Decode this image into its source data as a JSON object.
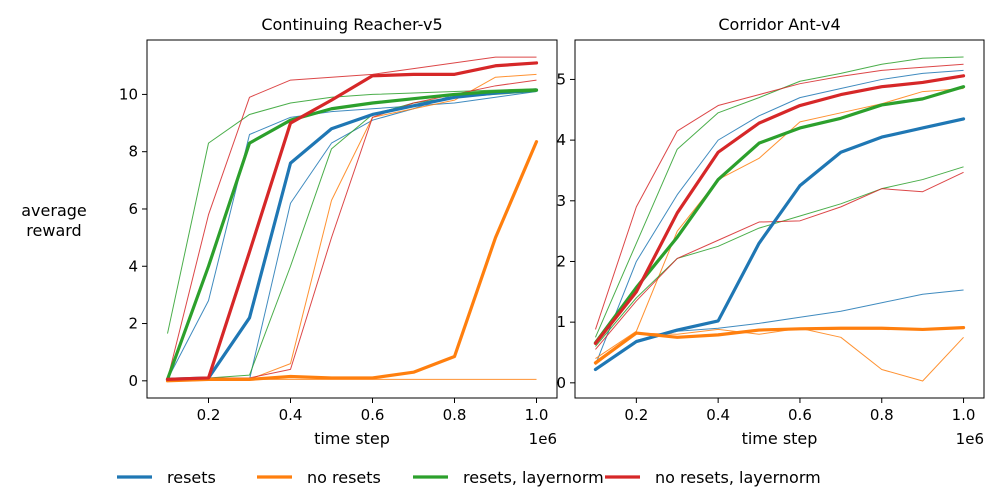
{
  "figure": {
    "ylabel": [
      "average",
      "reward"
    ],
    "legend": [
      {
        "label": "resets",
        "color": "#1f77b4"
      },
      {
        "label": "no resets",
        "color": "#ff7f0e"
      },
      {
        "label": "resets, layernorm",
        "color": "#2ca02c"
      },
      {
        "label": "no resets, layernorm",
        "color": "#d62728"
      }
    ],
    "legend_position": "bottom-center"
  },
  "chart_data": [
    {
      "type": "line",
      "title": "Continuing Reacher-v5",
      "xlabel": "time step",
      "ylabel": "average reward",
      "x_offset_label": "1e6",
      "x": [
        0.1,
        0.2,
        0.3,
        0.4,
        0.5,
        0.6,
        0.7,
        0.8,
        0.9,
        1.0
      ],
      "xlim": [
        0.05,
        1.05
      ],
      "ylim": [
        -0.6,
        11.9
      ],
      "xticks": [
        0.2,
        0.4,
        0.6,
        0.8,
        1.0
      ],
      "xtick_labels": [
        "0.2",
        "0.4",
        "0.6",
        "0.8",
        "1.0"
      ],
      "yticks": [
        0,
        2,
        4,
        6,
        8,
        10
      ],
      "ytick_labels": [
        "0",
        "2",
        "4",
        "6",
        "8",
        "10"
      ],
      "grid": false,
      "series": [
        {
          "name": "resets",
          "color": "#1f77b4",
          "values": [
            0.05,
            0.1,
            2.2,
            7.6,
            8.8,
            9.3,
            9.6,
            9.9,
            10.05,
            10.15
          ]
        },
        {
          "name": "no resets",
          "color": "#ff7f0e",
          "values": [
            0.0,
            0.05,
            0.05,
            0.15,
            0.1,
            0.1,
            0.3,
            0.85,
            5.0,
            8.35
          ]
        },
        {
          "name": "resets, layernorm",
          "color": "#2ca02c",
          "values": [
            0.05,
            4.0,
            8.3,
            9.1,
            9.5,
            9.7,
            9.85,
            10.0,
            10.1,
            10.15
          ]
        },
        {
          "name": "no resets, layernorm",
          "color": "#d62728",
          "values": [
            0.05,
            0.1,
            4.5,
            9.0,
            9.8,
            10.65,
            10.7,
            10.7,
            11.0,
            11.1
          ]
        }
      ],
      "runs": [
        {
          "color": "#1f77b4",
          "values": [
            0.05,
            2.8,
            8.6,
            9.2,
            9.4,
            9.5,
            9.6,
            9.7,
            9.9,
            10.1
          ]
        },
        {
          "color": "#1f77b4",
          "values": [
            0.05,
            0.05,
            0.05,
            6.2,
            8.3,
            9.1,
            9.5,
            10.0,
            10.1,
            10.2
          ]
        },
        {
          "color": "#ff7f0e",
          "values": [
            0.0,
            0.05,
            0.05,
            0.6,
            6.3,
            9.2,
            9.5,
            9.8,
            10.6,
            10.7
          ]
        },
        {
          "color": "#ff7f0e",
          "values": [
            0.0,
            0.05,
            0.05,
            0.05,
            0.05,
            0.05,
            0.05,
            0.05,
            0.05,
            0.05
          ]
        },
        {
          "color": "#2ca02c",
          "values": [
            1.65,
            8.3,
            9.3,
            9.7,
            9.9,
            10.0,
            10.05,
            10.1,
            10.15,
            10.2
          ]
        },
        {
          "color": "#2ca02c",
          "values": [
            0.05,
            0.1,
            0.2,
            4.0,
            8.1,
            9.3,
            9.7,
            9.9,
            10.0,
            10.1
          ]
        },
        {
          "color": "#d62728",
          "values": [
            0.05,
            5.8,
            9.9,
            10.5,
            10.6,
            10.7,
            10.9,
            11.1,
            11.3,
            11.3
          ]
        },
        {
          "color": "#d62728",
          "values": [
            0.05,
            0.1,
            0.1,
            0.4,
            5.0,
            9.2,
            9.7,
            10.0,
            10.3,
            10.5
          ]
        }
      ]
    },
    {
      "type": "line",
      "title": "Corridor Ant-v4",
      "xlabel": "time step",
      "x_offset_label": "1e6",
      "x": [
        0.1,
        0.2,
        0.3,
        0.4,
        0.5,
        0.6,
        0.7,
        0.8,
        0.9,
        1.0
      ],
      "xlim": [
        0.05,
        1.05
      ],
      "ylim": [
        -0.25,
        5.65
      ],
      "xticks": [
        0.2,
        0.4,
        0.6,
        0.8,
        1.0
      ],
      "xtick_labels": [
        "0.2",
        "0.4",
        "0.6",
        "0.8",
        "1.0"
      ],
      "yticks": [
        0,
        1,
        2,
        3,
        4,
        5
      ],
      "ytick_labels": [
        "0",
        "1",
        "2",
        "3",
        "4",
        "5"
      ],
      "grid": false,
      "series": [
        {
          "name": "resets",
          "color": "#1f77b4",
          "values": [
            0.22,
            0.68,
            0.87,
            1.02,
            2.3,
            3.25,
            3.8,
            4.05,
            4.2,
            4.35
          ]
        },
        {
          "name": "no resets",
          "color": "#ff7f0e",
          "values": [
            0.33,
            0.82,
            0.75,
            0.79,
            0.87,
            0.89,
            0.9,
            0.9,
            0.88,
            0.91
          ]
        },
        {
          "name": "resets, layernorm",
          "color": "#2ca02c",
          "values": [
            0.66,
            1.57,
            2.4,
            3.35,
            3.95,
            4.2,
            4.36,
            4.58,
            4.68,
            4.88
          ]
        },
        {
          "name": "no resets, layernorm",
          "color": "#d62728",
          "values": [
            0.65,
            1.5,
            2.8,
            3.8,
            4.28,
            4.57,
            4.75,
            4.88,
            4.95,
            5.06
          ]
        }
      ],
      "runs": [
        {
          "color": "#1f77b4",
          "values": [
            0.3,
            2.0,
            3.1,
            4.0,
            4.4,
            4.7,
            4.85,
            5.0,
            5.1,
            5.15
          ]
        },
        {
          "color": "#1f77b4",
          "values": [
            0.2,
            0.7,
            0.85,
            0.9,
            0.98,
            1.08,
            1.18,
            1.32,
            1.46,
            1.53
          ]
        },
        {
          "color": "#ff7f0e",
          "values": [
            0.4,
            0.85,
            2.5,
            3.35,
            3.7,
            4.3,
            4.45,
            4.6,
            4.8,
            4.85
          ]
        },
        {
          "color": "#ff7f0e",
          "values": [
            0.3,
            0.82,
            0.8,
            0.88,
            0.8,
            0.9,
            0.75,
            0.22,
            0.03,
            0.75
          ]
        },
        {
          "color": "#2ca02c",
          "values": [
            0.75,
            2.3,
            3.85,
            4.45,
            4.7,
            4.97,
            5.1,
            5.25,
            5.35,
            5.37
          ]
        },
        {
          "color": "#2ca02c",
          "values": [
            0.6,
            1.4,
            2.05,
            2.25,
            2.55,
            2.75,
            2.95,
            3.2,
            3.35,
            3.56
          ]
        },
        {
          "color": "#d62728",
          "values": [
            0.88,
            2.9,
            4.15,
            4.57,
            4.75,
            4.93,
            5.05,
            5.15,
            5.2,
            5.25
          ]
        },
        {
          "color": "#d62728",
          "values": [
            0.55,
            1.35,
            2.05,
            2.35,
            2.65,
            2.67,
            2.9,
            3.2,
            3.15,
            3.47
          ]
        }
      ]
    }
  ]
}
